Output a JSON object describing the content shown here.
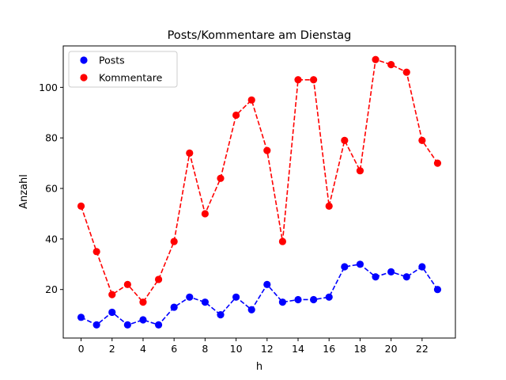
{
  "chart_data": {
    "type": "line",
    "title": "Posts/Kommentare am Dienstag",
    "xlabel": "h",
    "ylabel": "Anzahl",
    "x": [
      0,
      1,
      2,
      3,
      4,
      5,
      6,
      7,
      8,
      9,
      10,
      11,
      12,
      13,
      14,
      15,
      16,
      17,
      18,
      19,
      20,
      21,
      22,
      23
    ],
    "xlim": [
      -1.15,
      24.15
    ],
    "ylim": [
      0.8,
      116.4
    ],
    "xticks": [
      "0",
      "2",
      "4",
      "6",
      "8",
      "10",
      "12",
      "14",
      "16",
      "18",
      "20",
      "22"
    ],
    "yticks": [
      "20",
      "40",
      "60",
      "80",
      "100"
    ],
    "grid": false,
    "legend_position": "top-left",
    "series": [
      {
        "name": "Posts",
        "color": "#0000ff",
        "values": [
          9,
          6,
          11,
          6,
          8,
          6,
          13,
          17,
          15,
          10,
          17,
          12,
          22,
          15,
          16,
          16,
          17,
          29,
          30,
          25,
          27,
          25,
          29,
          20
        ]
      },
      {
        "name": "Kommentare",
        "color": "#ff0000",
        "values": [
          53,
          35,
          18,
          22,
          15,
          24,
          39,
          74,
          50,
          64,
          89,
          95,
          75,
          39,
          103,
          103,
          53,
          79,
          67,
          111,
          109,
          106,
          79,
          70
        ]
      }
    ]
  }
}
